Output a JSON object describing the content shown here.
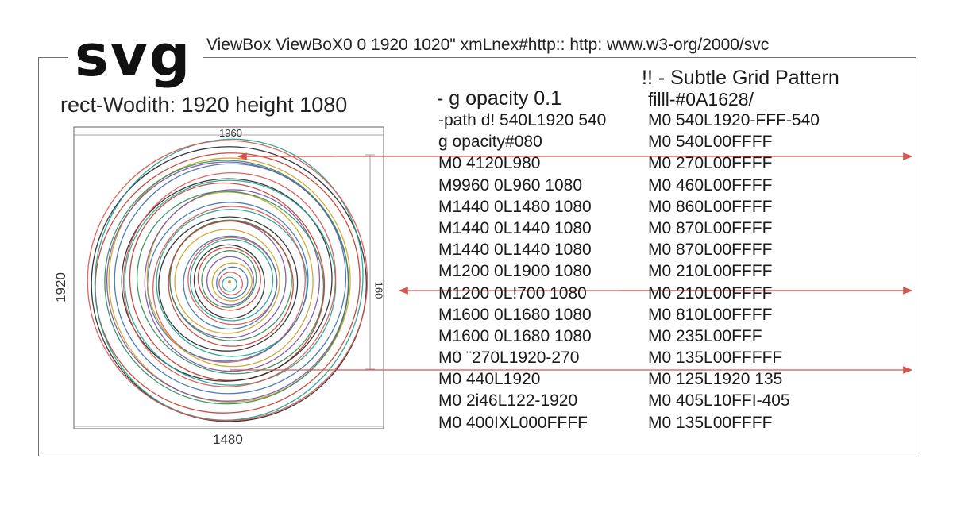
{
  "title": "svg",
  "header": "ViewBox ViewBoX0 0 1920 1020\" xmLnex#http:: http: www.w3-org/2000/svc",
  "rect_caption": "rect-Wodith: 1920 height 1080",
  "dimensions": {
    "top": "1960",
    "bottom": "1480",
    "left": "1920",
    "right": "160"
  },
  "left_column": {
    "heading": "- g opacity 0.1",
    "lines": [
      "-path d! 540L1920 540",
      "g opacity#080",
      "M0 4120L980",
      "M9960 0L960 1080",
      "M1440 0L1480 1080",
      "M1440 0L1440 1080",
      "M1440 0L1440 1080",
      "M1200 0L1900 1080",
      "M1200 0L!700 1080",
      "M1600 0L1680 1080",
      "M1600 0L1680 1080",
      "M0 ¨270L1920-270",
      "M0 440L1920",
      "M0 2i46L122-1920",
      "M0 400IXL000FFFF"
    ]
  },
  "right_column": {
    "heading": "!! - Subtle Grid Pattern",
    "subheading": "filll-#0A1628/",
    "lines": [
      "M0 540L1920-FFF-540",
      "M0 540L00FFFF",
      "M0 270L00FFFF",
      "M0 460L00FFFF",
      "M0 860L00FFFF",
      "M0 870L00FFFF",
      "M0 870L00FFFF",
      "M0 210L00FFFF",
      "M0 210L00FFFF",
      "M0 810L00FFFF",
      "M0 235L00FFF",
      "M0 135L00FFFFF",
      "M0 125L1920 135",
      "M0 405L10FFI-405",
      "M0 135L00FFFF"
    ]
  },
  "colors": {
    "arrow": "#d9534f",
    "frame": "#6f6f6f",
    "spiral_palette": [
      "#1f9e8f",
      "#d9534f",
      "#3a6fb0",
      "#c9a227",
      "#7b4fa0",
      "#2e8b57",
      "#c0392b",
      "#222222"
    ]
  }
}
